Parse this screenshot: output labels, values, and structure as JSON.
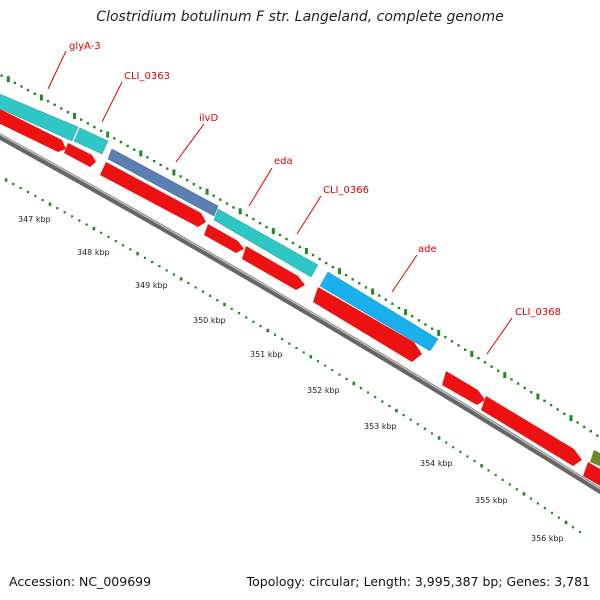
{
  "title": "Clostridium botulinum F str. Langeland, complete genome",
  "footer": {
    "accession": "Accession: NC_009699",
    "summary": "Topology: circular; Length: 3,995,387 bp; Genes: 3,781"
  },
  "gene_labels": [
    "glyA-3",
    "CLI_0363",
    "ilvD",
    "eda",
    "CLI_0366",
    "ade",
    "CLI_0368"
  ],
  "tick_labels": [
    "347 kbp",
    "348 kbp",
    "349 kbp",
    "350 kbp",
    "351 kbp",
    "352 kbp",
    "353 kbp",
    "354 kbp",
    "355 kbp",
    "356 kbp"
  ],
  "colors": {
    "cds_forward": "#2fc6c6",
    "cds_forward_blue": "#1ab0ee",
    "cds_reverse": "#ee1111",
    "backbone": "#888888",
    "gc_dots": "#1f8a1f",
    "label": "#e00000"
  }
}
